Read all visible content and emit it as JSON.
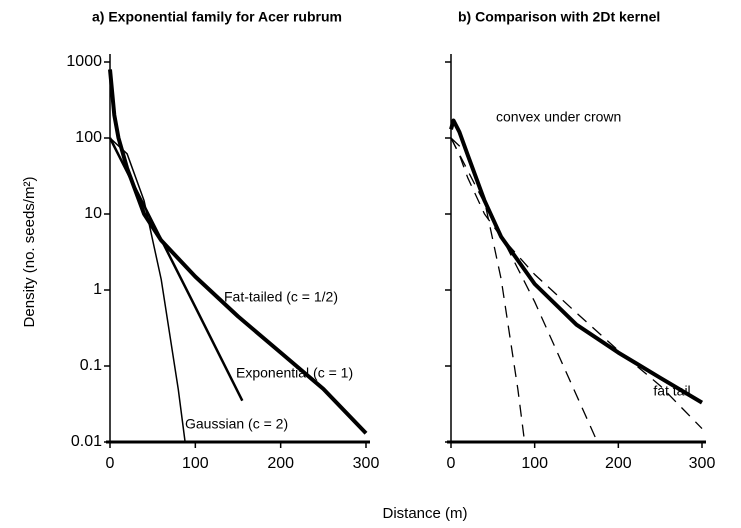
{
  "chart_data": [
    {
      "type": "line",
      "title": "a) Exponential family for Acer rubrum",
      "xlabel": "Distance (m)",
      "ylabel": "Density (no. seeds/m²)",
      "log_y": true,
      "xlim": [
        0,
        300
      ],
      "ylim": [
        0.01,
        1000
      ],
      "xticks": [
        0,
        100,
        200,
        300
      ],
      "yticks": [
        0.01,
        0.1,
        1,
        10,
        100,
        1000
      ],
      "series": [
        {
          "name": "Fat-tailed (c = 1/2)",
          "color": "#000000",
          "width": 4,
          "dashed": false,
          "x": [
            0,
            5,
            10,
            20,
            40,
            60,
            100,
            150,
            200,
            250,
            300
          ],
          "values": [
            800,
            200,
            100,
            40,
            10,
            4.5,
            1.5,
            0.45,
            0.15,
            0.05,
            0.013
          ]
        },
        {
          "name": "Exponential (c = 1)",
          "color": "#000000",
          "width": 2.5,
          "dashed": false,
          "x": [
            0,
            50,
            100,
            155
          ],
          "values": [
            100,
            7.7,
            0.6,
            0.035
          ]
        },
        {
          "name": "Gaussian (c = 2)",
          "color": "#000000",
          "width": 1.5,
          "dashed": false,
          "x": [
            0,
            20,
            40,
            60,
            80,
            88
          ],
          "values": [
            100,
            62,
            14.9,
            1.38,
            0.049,
            0.01
          ]
        }
      ]
    },
    {
      "type": "line",
      "title": "b) Comparison with 2Dt kernel",
      "log_y": true,
      "xlim": [
        0,
        300
      ],
      "ylim": [
        0.01,
        1000
      ],
      "xticks": [
        0,
        100,
        200,
        300
      ],
      "yticks": [
        0.01,
        0.1,
        1,
        10,
        100,
        1000
      ],
      "annotations": [
        "convex under crown",
        "fat tail"
      ],
      "series": [
        {
          "color": "#000000",
          "width": 4,
          "dashed": false,
          "x": [
            0,
            3,
            10,
            20,
            40,
            60,
            100,
            150,
            200,
            250,
            300
          ],
          "values": [
            130,
            170,
            120,
            60,
            15,
            5,
            1.2,
            0.35,
            0.15,
            0.07,
            0.033
          ]
        },
        {
          "color": "#000000",
          "width": 1.3,
          "dashed": true,
          "x": [
            0,
            20,
            40,
            60,
            80,
            88
          ],
          "values": [
            100,
            62,
            14.9,
            1.38,
            0.049,
            0.01
          ]
        },
        {
          "color": "#000000",
          "width": 1.3,
          "dashed": true,
          "x": [
            0,
            50,
            100,
            175
          ],
          "values": [
            100,
            8.5,
            0.7,
            0.01
          ]
        },
        {
          "color": "#000000",
          "width": 1.3,
          "dashed": true,
          "x": [
            0,
            10,
            20,
            40,
            60,
            100,
            150,
            200,
            250,
            300
          ],
          "values": [
            100,
            60,
            30,
            10,
            5,
            1.6,
            0.5,
            0.16,
            0.055,
            0.015
          ]
        }
      ]
    }
  ]
}
